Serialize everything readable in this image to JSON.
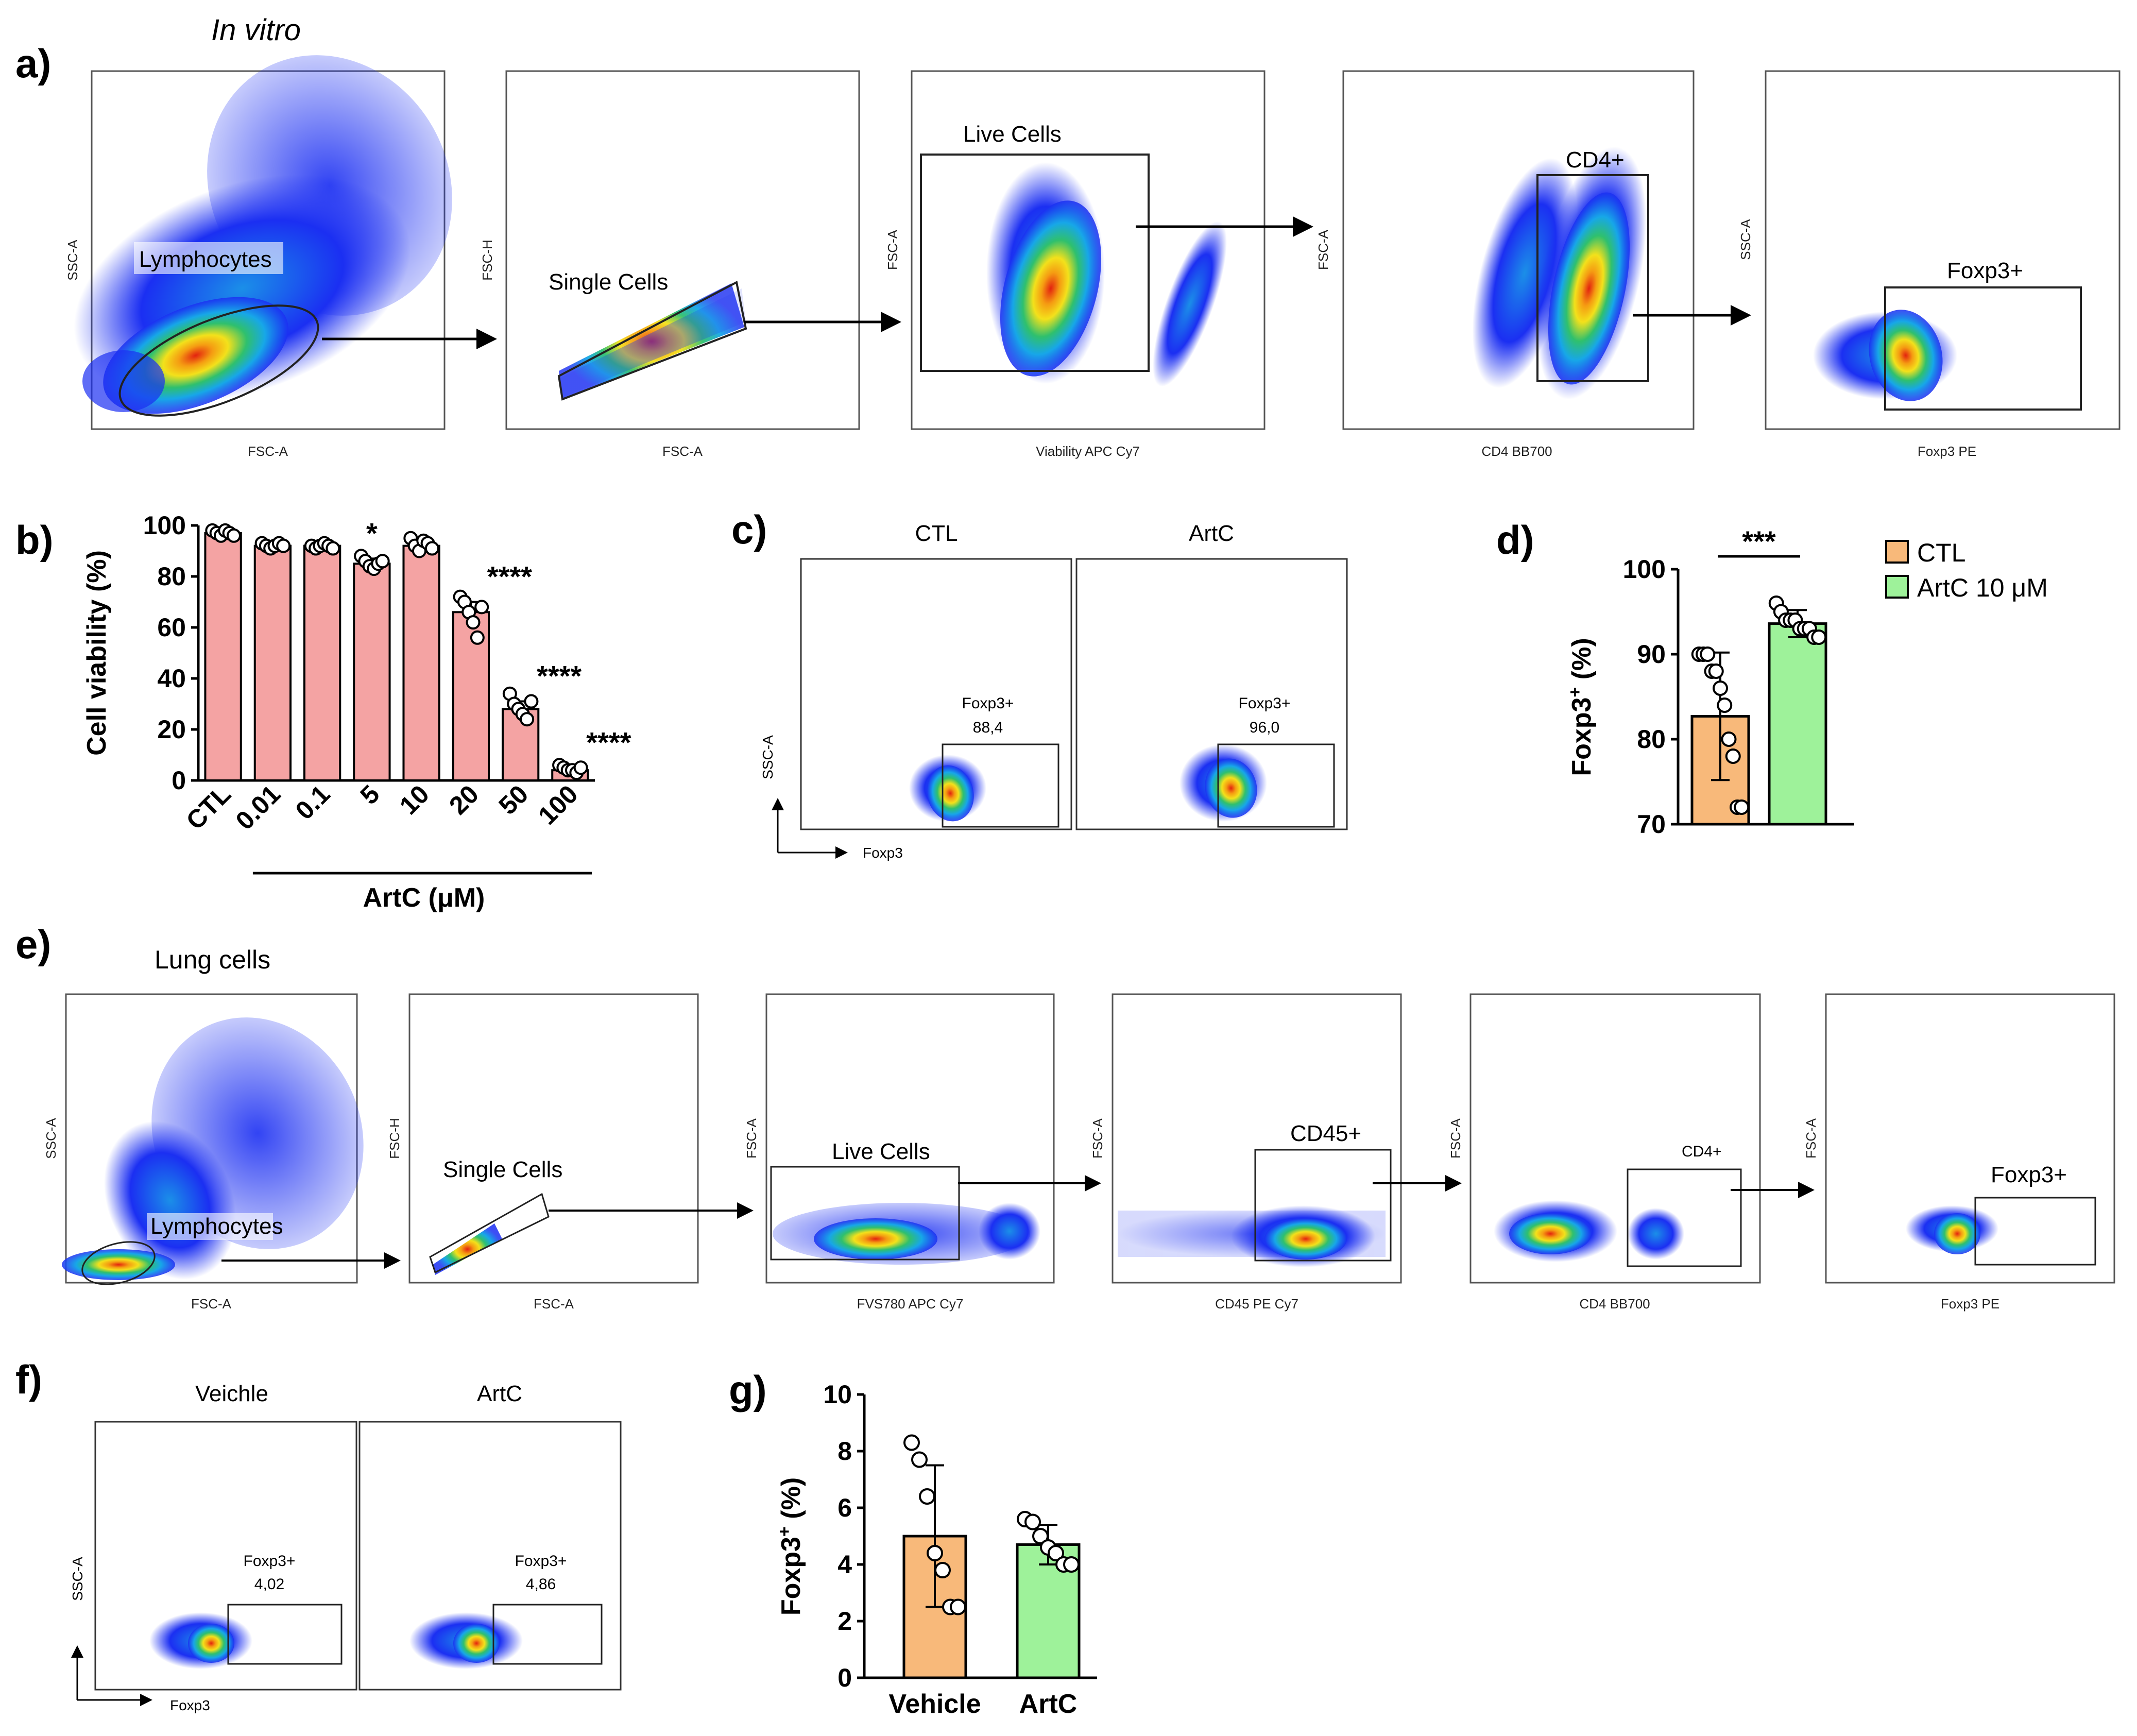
{
  "colors": {
    "bar_b": "#f4a3a3",
    "ctl": "#f8b97a",
    "artc": "#9ef29a",
    "cell_hi": "#e3220f",
    "cell_mid": "#f3e11b",
    "cell_low": "#2fc06d",
    "cell_bg": "#1b2ff2"
  },
  "panel_a": {
    "letter": "a)",
    "title": "In vitro",
    "plots": [
      {
        "y_axis": "SSC-A",
        "x_axis": "FSC-A",
        "gate": "Lymphocytes"
      },
      {
        "y_axis": "FSC-H",
        "x_axis": "FSC-A",
        "gate": "Single Cells"
      },
      {
        "y_axis": "FSC-A",
        "x_axis": "Viability APC Cy7",
        "gate": "Live Cells"
      },
      {
        "y_axis": "FSC-A",
        "x_axis": "CD4 BB700",
        "gate": "CD4+"
      },
      {
        "y_axis": "SSC-A",
        "x_axis": "Foxp3 PE",
        "gate": "Foxp3+"
      }
    ]
  },
  "panel_e": {
    "letter": "e)",
    "title": "Lung cells",
    "plots": [
      {
        "y_axis": "SSC-A",
        "x_axis": "FSC-A",
        "gate": "Lymphocytes"
      },
      {
        "y_axis": "FSC-H",
        "x_axis": "FSC-A",
        "gate": "Single Cells"
      },
      {
        "y_axis": "FSC-A",
        "x_axis": "FVS780 APC Cy7",
        "gate": "Live Cells"
      },
      {
        "y_axis": "FSC-A",
        "x_axis": "CD45 PE Cy7",
        "gate": "CD45+"
      },
      {
        "y_axis": "FSC-A",
        "x_axis": "CD4 BB700",
        "gate": "CD4+"
      },
      {
        "y_axis": "FSC-A",
        "x_axis": "Foxp3 PE",
        "gate": "Foxp3+"
      }
    ]
  },
  "panel_c": {
    "letter": "c)",
    "y_axis": "SSC-A",
    "x_axis": "Foxp3",
    "plots": [
      {
        "title": "CTL",
        "gate": "Foxp3+",
        "value": "88,4"
      },
      {
        "title": "ArtC",
        "gate": "Foxp3+",
        "value": "96,0"
      }
    ]
  },
  "panel_f": {
    "letter": "f)",
    "y_axis": "SSC-A",
    "x_axis": "Foxp3",
    "plots": [
      {
        "title": "Veichle",
        "gate": "Foxp3+",
        "value": "4,02"
      },
      {
        "title": "ArtC",
        "gate": "Foxp3+",
        "value": "4,86"
      }
    ]
  },
  "chart_data": [
    {
      "panel": "b)",
      "type": "bar",
      "categories": [
        "CTL",
        "0.01",
        "0.1",
        "5",
        "10",
        "20",
        "50",
        "100"
      ],
      "values": [
        97,
        92,
        92,
        85,
        92,
        66,
        28,
        4
      ],
      "errors": [
        1,
        1,
        1,
        2,
        2,
        4,
        3,
        1
      ],
      "points": [
        [
          98,
          97,
          96,
          98,
          97,
          96
        ],
        [
          93,
          92,
          91,
          92,
          93,
          92
        ],
        [
          92,
          91,
          92,
          93,
          92,
          91
        ],
        [
          88,
          86,
          84,
          83,
          85,
          86
        ],
        [
          95,
          92,
          90,
          94,
          93,
          91
        ],
        [
          72,
          70,
          66,
          62,
          56,
          68
        ],
        [
          34,
          30,
          28,
          26,
          24,
          31
        ],
        [
          6,
          5,
          4,
          4,
          3,
          5
        ]
      ],
      "significance": [
        "",
        "",
        "",
        "*",
        "",
        "****",
        "****",
        "****"
      ],
      "xlabel": "ArtC (μM)",
      "ylabel": "Cell viability (%)",
      "ylim": [
        0,
        100
      ],
      "yticks": [
        "0",
        "20",
        "40",
        "60",
        "80",
        "100"
      ]
    },
    {
      "panel": "d)",
      "type": "bar",
      "categories": [
        "CTL",
        "ArtC 10 μM"
      ],
      "values": [
        82.7,
        93.6
      ],
      "sd": [
        7.5,
        1.6
      ],
      "points": [
        [
          90,
          90,
          90,
          88,
          88,
          86,
          84,
          80,
          78,
          72,
          72
        ],
        [
          96,
          95,
          94,
          94,
          94,
          93,
          93,
          93,
          92,
          92
        ]
      ],
      "significance": "***",
      "ylabel_main": "Foxp3",
      "ylabel_sup": "+",
      "ylabel_unit": " (%)",
      "ylim": [
        70,
        100
      ],
      "yticks": [
        "70",
        "80",
        "90",
        "100"
      ],
      "legend": [
        "CTL",
        "ArtC 10 μM"
      ]
    },
    {
      "panel": "g)",
      "type": "bar",
      "categories": [
        "Vehicle",
        "ArtC"
      ],
      "values": [
        5.0,
        4.7
      ],
      "sd": [
        2.5,
        0.7
      ],
      "points": [
        [
          8.3,
          7.7,
          6.4,
          4.4,
          3.8,
          2.5,
          2.5
        ],
        [
          5.6,
          5.5,
          5.0,
          4.6,
          4.4,
          4.0,
          4.0
        ]
      ],
      "ylabel_main": "Foxp3",
      "ylabel_sup": "+",
      "ylabel_unit": " (%)",
      "ylim": [
        0,
        10
      ],
      "yticks": [
        "0",
        "2",
        "4",
        "6",
        "8",
        "10"
      ]
    }
  ]
}
